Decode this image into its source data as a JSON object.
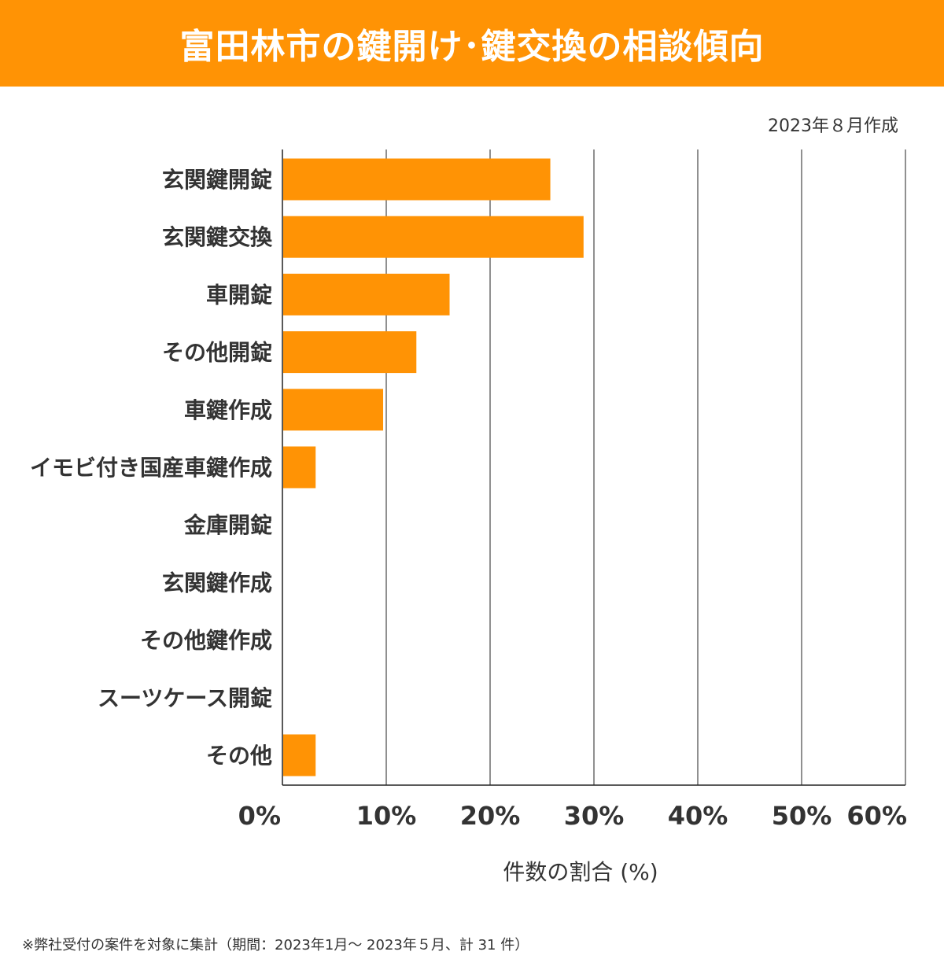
{
  "header": {
    "title": "富田林市の鍵開け･鍵交換の相談傾向"
  },
  "date_label": "2023年８月作成",
  "footnote": "※弊社受付の案件を対象に集計（期間：2023年1月～ 2023年５月、計 31 件）",
  "colors": {
    "accent": "#ff9305",
    "bar": "#ff9305",
    "text": "#333333",
    "grid": "#222222"
  },
  "chart_data": {
    "type": "bar",
    "orientation": "horizontal",
    "title": "富田林市の鍵開け･鍵交換の相談傾向",
    "xlabel": "件数の割合 (%)",
    "ylabel": "",
    "categories": [
      "玄関鍵開錠",
      "玄関鍵交換",
      "車開錠",
      "その他開錠",
      "車鍵作成",
      "イモビ付き国産車鍵作成",
      "金庫開錠",
      "玄関鍵作成",
      "その他鍵作成",
      "スーツケース開錠",
      "その他"
    ],
    "values": [
      25.8,
      29.0,
      16.1,
      12.9,
      9.7,
      3.2,
      0,
      0,
      0,
      0,
      3.2
    ],
    "xlim": [
      0,
      60
    ],
    "xticks": [
      "0%",
      "10%",
      "20%",
      "30%",
      "40%",
      "50%",
      "60%"
    ],
    "grid": true
  }
}
